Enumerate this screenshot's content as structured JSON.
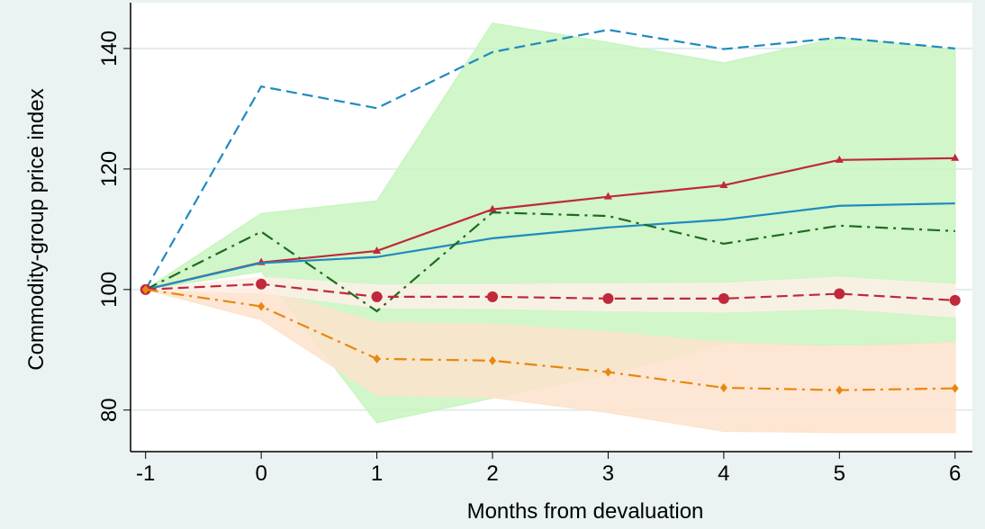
{
  "chart_data": {
    "type": "line",
    "x_label": "Months from devaluation",
    "y_label": "Commodity-group price index",
    "x": [
      -1,
      0,
      1,
      2,
      3,
      4,
      5,
      6
    ],
    "xlim": [
      -1.13,
      6.15
    ],
    "ylim": [
      73.1,
      147.6
    ],
    "xticks": [
      -1,
      0,
      1,
      2,
      3,
      4,
      5,
      6
    ],
    "yticks": [
      80,
      100,
      120,
      140
    ],
    "grid": true,
    "bands": [
      {
        "color": "#c8f5c0",
        "upper": [
          100,
          112.6,
          114.7,
          144.2,
          141,
          137.6,
          141.8,
          139.8
        ],
        "lower": [
          100,
          103,
          77.9,
          82,
          86,
          91,
          90.8,
          91.2
        ]
      },
      {
        "color": "#fde3cc",
        "upper": [
          100,
          100,
          94.5,
          94.2,
          92.9,
          91.2,
          90.5,
          91.2
        ],
        "lower": [
          100,
          95,
          82.5,
          82.1,
          79.6,
          76.5,
          76.3,
          76.3
        ]
      },
      {
        "color": "#fdf0e6",
        "upper": [
          100,
          102,
          100.7,
          100.8,
          100.9,
          101,
          102,
          100.8
        ],
        "lower": [
          100,
          99.5,
          97,
          96.9,
          96.5,
          96.3,
          96.9,
          95.5
        ]
      }
    ],
    "series": [
      {
        "color": "#1f8ac0",
        "dash": "dashed",
        "values": [
          100,
          133.7,
          130.1,
          139.4,
          143.1,
          139.9,
          141.8,
          140.0
        ]
      },
      {
        "color": "#c0283c",
        "dash": "solid",
        "marker": "triangle",
        "values": [
          100,
          104.5,
          106.4,
          113.3,
          115.4,
          117.3,
          121.5,
          121.8
        ]
      },
      {
        "color": "#1f8ac0",
        "dash": "solid",
        "values": [
          100,
          104.4,
          105.4,
          108.5,
          110.3,
          111.6,
          113.9,
          114.3
        ]
      },
      {
        "color": "#1e6b1e",
        "dash": "dashdot",
        "values": [
          100,
          109.6,
          96.4,
          112.8,
          112.2,
          107.6,
          110.6,
          109.7
        ]
      },
      {
        "color": "#c0283c",
        "dash": "dashed",
        "marker": "circle",
        "values": [
          100,
          100.9,
          98.8,
          98.8,
          98.5,
          98.5,
          99.3,
          98.2
        ]
      },
      {
        "color": "#e8870f",
        "dash": "dashdot",
        "marker": "diamond",
        "values": [
          100,
          97.2,
          88.5,
          88.2,
          86.3,
          83.7,
          83.3,
          83.6
        ]
      }
    ]
  }
}
